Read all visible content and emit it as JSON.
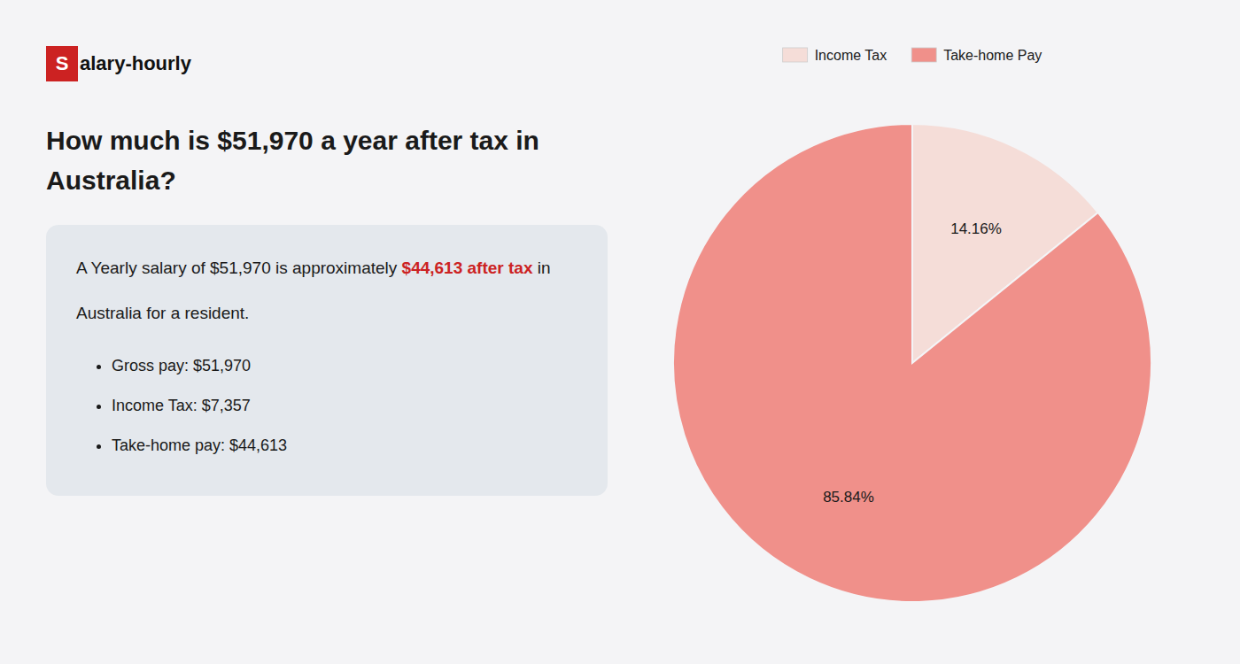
{
  "chart_data": {
    "type": "pie",
    "title": "How much is $51,970 a year after tax in Australia?",
    "annotations": [
      {
        "text": "S",
        "color": "#cc2222"
      },
      {
        "text": "alary-hourly"
      },
      {
        "text": "A Yearly salary of $51,970 is approximately "
      },
      {
        "text": "$44,613 after tax",
        "color": "#cc2222"
      },
      {
        "text": " in"
      },
      {
        "text": "Australia for a resident."
      },
      {
        "text": "Gross pay: $51,970"
      },
      {
        "text": "Income Tax: $7,357"
      },
      {
        "text": "Take-home pay: $44,613"
      }
    ],
    "categories": [
      "Income Tax",
      "Take-home Pay"
    ],
    "values": [
      14.16,
      85.84
    ],
    "value_labels": [
      "14.16%",
      "85.84%"
    ],
    "colors": [
      "#f5ddd8",
      "#f0908a"
    ],
    "data_labels": true,
    "legend": "top"
  }
}
